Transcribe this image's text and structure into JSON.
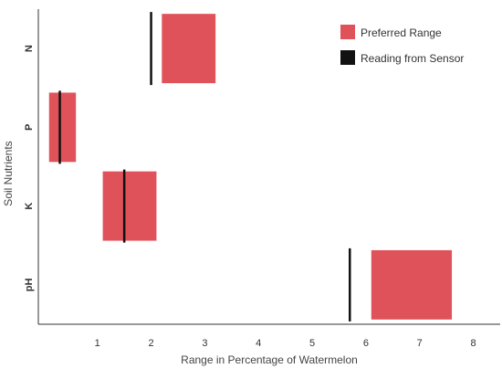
{
  "chart_data": {
    "type": "bar",
    "title": "",
    "xlabel": "Range in Percentage of Watermelon",
    "ylabel": "Soil Nutrients",
    "xlim": [
      -0.1,
      8.5
    ],
    "x_ticks": [
      "1",
      "2",
      "3",
      "4",
      "5",
      "6",
      "7",
      "8"
    ],
    "categories": [
      "N",
      "P",
      "K",
      "pH"
    ],
    "series": [
      {
        "name": "Preferred Range",
        "color": "#e0525a",
        "ranges": [
          [
            2.2,
            3.2
          ],
          [
            0.1,
            0.6
          ],
          [
            1.1,
            2.1
          ],
          [
            6.1,
            7.6
          ]
        ]
      },
      {
        "name": "Reading from Sensor",
        "color": "#111111",
        "values": [
          2.0,
          0.3,
          1.5,
          5.7
        ]
      }
    ],
    "legend_position": "top-right",
    "grid": false
  }
}
